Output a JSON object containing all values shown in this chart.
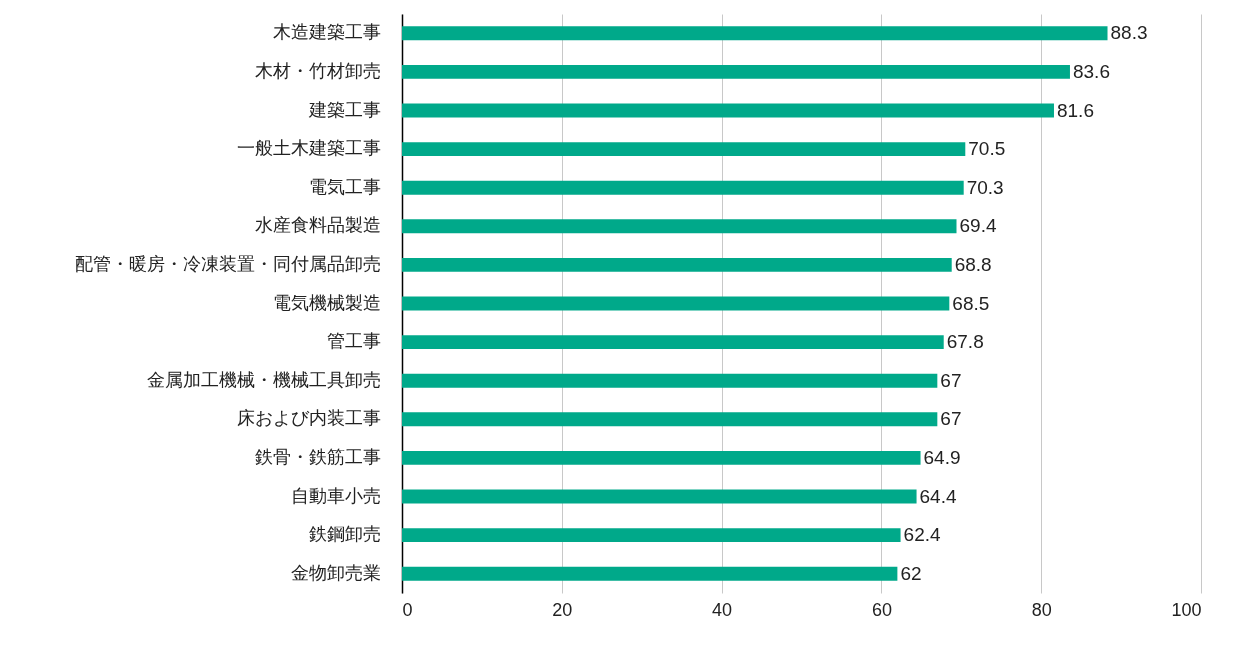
{
  "chart_data": {
    "type": "bar",
    "orientation": "horizontal",
    "categories": [
      "木造建築工事",
      "木材・竹材卸売",
      "建築工事",
      "一般土木建築工事",
      "電気工事",
      "水産食料品製造",
      "配管・暖房・冷凍装置・同付属品卸売",
      "電気機械製造",
      "管工事",
      "金属加工機械・機械工具卸売",
      "床および内装工事",
      "鉄骨・鉄筋工事",
      "自動車小売",
      "鉄鋼卸売",
      "金物卸売業"
    ],
    "values": [
      88.3,
      83.6,
      81.6,
      70.5,
      70.3,
      69.4,
      68.8,
      68.5,
      67.8,
      67,
      67,
      64.9,
      64.4,
      62.4,
      62
    ],
    "color": "#00a98a",
    "xlim": [
      0,
      100
    ],
    "xticks": [
      0,
      20,
      40,
      60,
      80,
      100
    ],
    "grid": "x",
    "data_labels": true
  }
}
